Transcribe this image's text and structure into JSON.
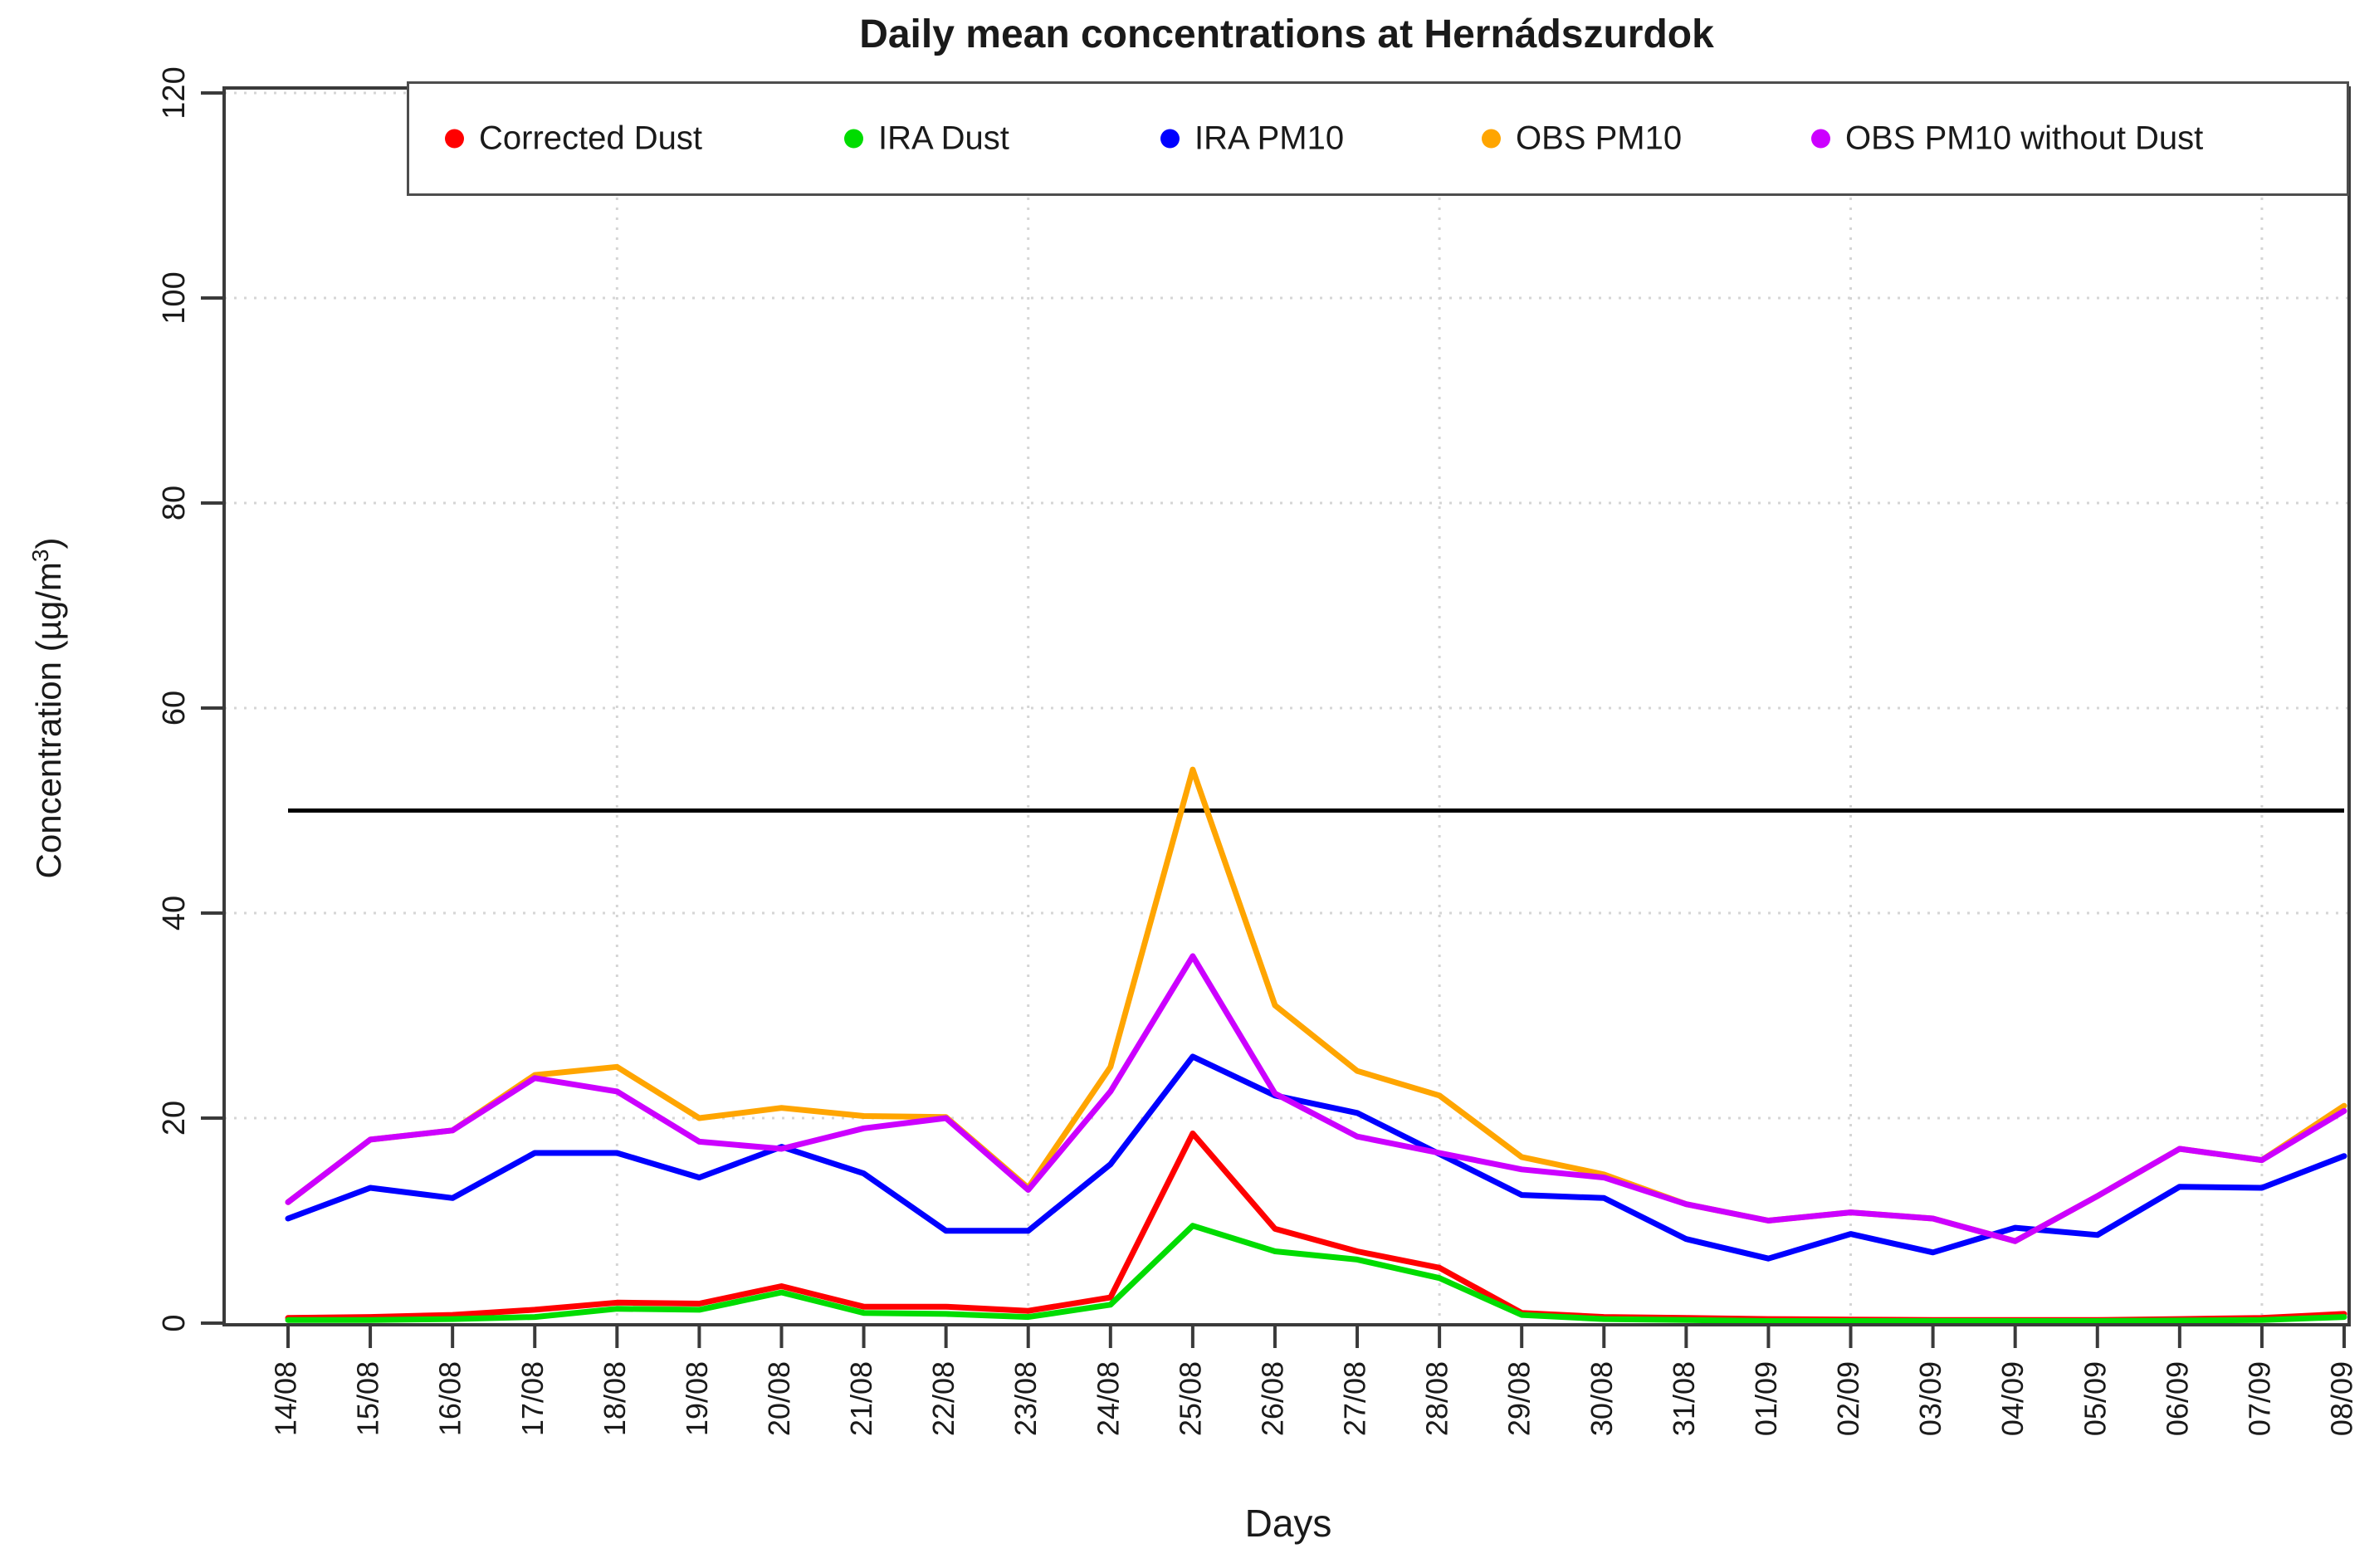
{
  "chart_data": {
    "type": "line",
    "title": "Daily mean concentrations at Hernádszurdok",
    "xlabel": "Days",
    "ylabel": "Concentration (µg/m³)",
    "ylabel_main": "Concentration (µg/m",
    "ylabel_sup": "3",
    "ylabel_close": ")",
    "ylim": [
      0,
      120
    ],
    "y_ticks": [
      0,
      20,
      40,
      60,
      80,
      100,
      120
    ],
    "categories": [
      "14/08",
      "15/08",
      "16/08",
      "17/08",
      "18/08",
      "19/08",
      "20/08",
      "21/08",
      "22/08",
      "23/08",
      "24/08",
      "25/08",
      "26/08",
      "27/08",
      "28/08",
      "29/08",
      "30/08",
      "31/08",
      "01/09",
      "02/09",
      "03/09",
      "04/09",
      "05/09",
      "06/09",
      "07/09",
      "08/09"
    ],
    "grid": "dotted",
    "grid_vertical_at_labels": [
      "18/08",
      "23/08",
      "28/08",
      "02/09",
      "07/09"
    ],
    "legend_position": "top-inside",
    "threshold_line": {
      "value": 50,
      "color": "#000000"
    },
    "axis_color": "#3a3a3a",
    "grid_color": "#d5d5d5",
    "series": [
      {
        "name": "Corrected Dust",
        "color": "#FF0000",
        "values": [
          0.5,
          0.6,
          0.8,
          1.3,
          2.0,
          1.9,
          3.6,
          1.6,
          1.6,
          1.2,
          2.5,
          18.5,
          9.2,
          7.0,
          5.4,
          1.0,
          0.6,
          0.5,
          0.4,
          0.35,
          0.3,
          0.3,
          0.3,
          0.4,
          0.5,
          0.9
        ]
      },
      {
        "name": "IRA Dust",
        "color": "#00DC00",
        "values": [
          0.3,
          0.3,
          0.4,
          0.6,
          1.4,
          1.3,
          3.0,
          1.0,
          0.9,
          0.6,
          1.8,
          9.5,
          7.0,
          6.2,
          4.4,
          0.8,
          0.4,
          0.3,
          0.2,
          0.2,
          0.2,
          0.2,
          0.2,
          0.25,
          0.3,
          0.6
        ]
      },
      {
        "name": "IRA PM10",
        "color": "#0000FF",
        "values": [
          10.2,
          13.2,
          12.2,
          16.6,
          16.6,
          14.2,
          17.2,
          14.6,
          9.0,
          9.0,
          15.5,
          26.0,
          22.2,
          20.5,
          16.5,
          12.5,
          12.2,
          8.2,
          6.3,
          8.7,
          6.9,
          9.3,
          8.6,
          13.3,
          13.2,
          16.3
        ]
      },
      {
        "name": "OBS PM10",
        "color": "#FFA500",
        "values": [
          11.8,
          17.9,
          18.8,
          24.2,
          25.0,
          20.0,
          21.0,
          20.2,
          20.1,
          13.2,
          25.0,
          54.0,
          31.0,
          24.6,
          22.2,
          16.2,
          14.5,
          11.6,
          10.0,
          10.8,
          10.2,
          8.0,
          12.4,
          17.0,
          15.9,
          21.2
        ]
      },
      {
        "name": "OBS PM10 without Dust",
        "color": "#CC00FF",
        "values": [
          11.8,
          17.9,
          18.8,
          23.9,
          22.6,
          17.7,
          17.0,
          19.0,
          20.0,
          13.0,
          22.6,
          35.8,
          22.4,
          18.2,
          16.6,
          15.0,
          14.2,
          11.6,
          10.0,
          10.8,
          10.2,
          8.0,
          12.4,
          17.0,
          15.9,
          20.7
        ]
      }
    ]
  }
}
